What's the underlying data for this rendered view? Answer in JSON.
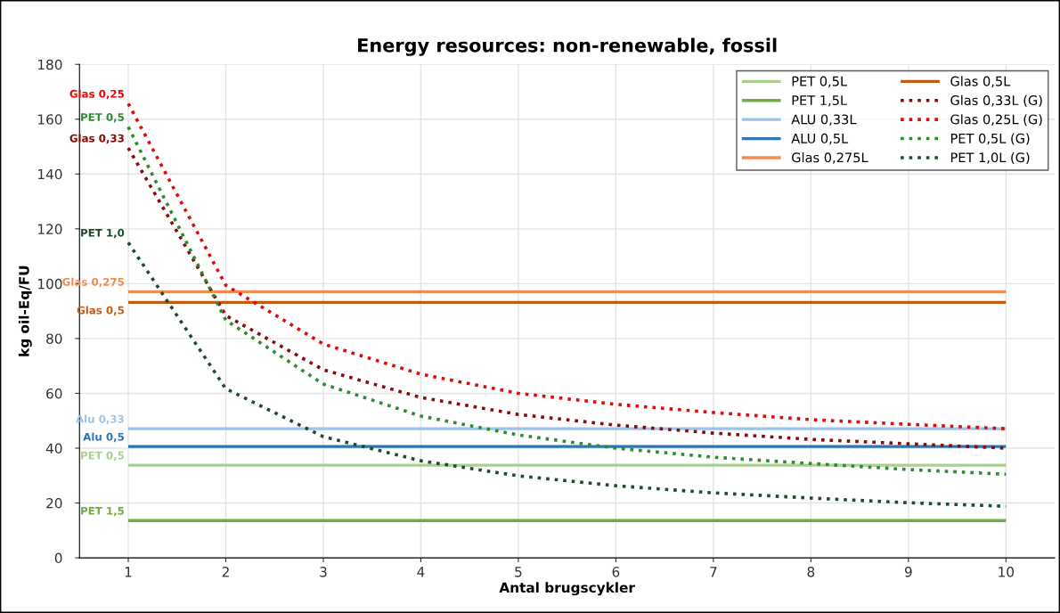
{
  "chart_data": {
    "type": "line",
    "title": "Energy resources: non-renewable, fossil",
    "xlabel": "Antal brugscykler",
    "ylabel": "kg oil-Eq/FU",
    "x": [
      1,
      2,
      3,
      4,
      5,
      6,
      7,
      8,
      9,
      10
    ],
    "xlim": [
      0.5,
      10.5
    ],
    "xticks": [
      1,
      2,
      3,
      4,
      5,
      6,
      7,
      8,
      9,
      10
    ],
    "ylim": [
      0,
      180
    ],
    "yticks": [
      0,
      20,
      40,
      60,
      80,
      100,
      120,
      140,
      160,
      180
    ],
    "grid": true,
    "legend": "top right",
    "marker": "none",
    "series": [
      {
        "name": "PET 0,5L",
        "color": "#a9d18e",
        "line_style": "solid",
        "values": [
          33.8,
          33.8,
          33.8,
          33.8,
          33.8,
          33.8,
          33.8,
          33.8,
          33.8,
          33.8
        ]
      },
      {
        "name": "PET 1,5L",
        "color": "#70ad47",
        "line_style": "solid",
        "values": [
          13.6,
          13.6,
          13.6,
          13.6,
          13.6,
          13.6,
          13.6,
          13.6,
          13.6,
          13.6
        ]
      },
      {
        "name": "ALU 0,33L",
        "color": "#9dc3e6",
        "line_style": "solid",
        "values": [
          47.1,
          47.1,
          47.1,
          47.1,
          47.1,
          47.1,
          47.1,
          47.1,
          47.1,
          47.1
        ]
      },
      {
        "name": "ALU 0,5L",
        "color": "#2e75b6",
        "line_style": "solid",
        "values": [
          40.6,
          40.6,
          40.6,
          40.6,
          40.6,
          40.6,
          40.6,
          40.6,
          40.6,
          40.6
        ]
      },
      {
        "name": "Glas 0,275L",
        "color": "#f08c52",
        "line_style": "solid",
        "values": [
          97.1,
          97.1,
          97.1,
          97.1,
          97.1,
          97.1,
          97.1,
          97.1,
          97.1,
          97.1
        ]
      },
      {
        "name": "Glas 0,5L",
        "color": "#c55a11",
        "line_style": "solid",
        "values": [
          93.2,
          93.2,
          93.2,
          93.2,
          93.2,
          93.2,
          93.2,
          93.2,
          93.2,
          93.2
        ]
      },
      {
        "name": "Glas 0,33L (G)",
        "color": "#8b0a0a",
        "line_style": "dotted",
        "values": [
          149.5,
          88.4,
          68.6,
          58.5,
          52.3,
          48.4,
          45.5,
          43.2,
          41.6,
          40.0
        ]
      },
      {
        "name": "Glas 0,25L (G)",
        "color": "#e00a0a",
        "line_style": "dotted",
        "values": [
          165.7,
          99.4,
          78.0,
          67.0,
          60.0,
          56.0,
          53.0,
          50.4,
          48.7,
          47.1
        ]
      },
      {
        "name": "PET 0,5L (G)",
        "color": "#2e8b2e",
        "line_style": "dotted",
        "values": [
          157.2,
          86.7,
          63.4,
          51.7,
          44.8,
          40.0,
          36.7,
          34.4,
          32.2,
          30.5
        ]
      },
      {
        "name": "PET 1,0L (G)",
        "color": "#1e4d2b",
        "line_style": "dotted",
        "values": [
          115.0,
          61.7,
          44.2,
          35.4,
          29.9,
          26.3,
          23.7,
          21.8,
          20.1,
          18.8
        ]
      }
    ],
    "annotations": [
      "PET 0,5",
      "PET 1,5",
      "Alu 0,33",
      "Alu 0,5",
      "Glas 0,275",
      "Glas 0,5",
      "Glas 0,33",
      "Glas 0,25",
      "PET 0,5",
      "PET 1,0"
    ]
  }
}
